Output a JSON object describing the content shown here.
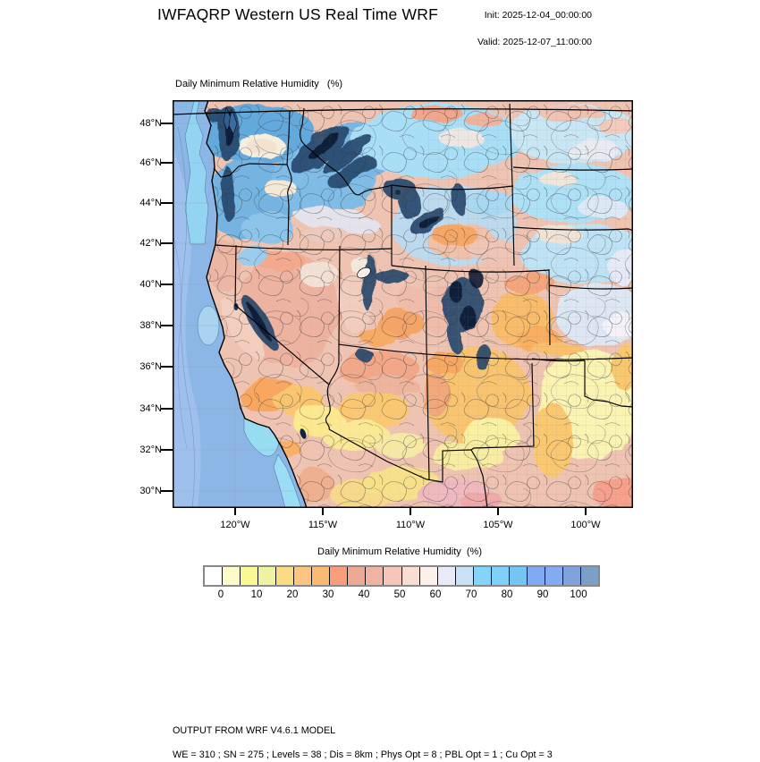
{
  "header": {
    "title": "IWFAQRP Western US Real Time WRF",
    "init_label": "Init: 2025-12-04_00:00:00",
    "valid_label": "Valid: 2025-12-07_11:00:00"
  },
  "map": {
    "subtitle": "Daily Minimum Relative Humidity   (%)",
    "lat_labels": [
      "48°N",
      "46°N",
      "44°N",
      "42°N",
      "40°N",
      "38°N",
      "36°N",
      "34°N",
      "32°N",
      "30°N"
    ],
    "lon_labels": [
      "120°W",
      "115°W",
      "110°W",
      "105°W",
      "100°W"
    ]
  },
  "colorbar": {
    "title": "Daily Minimum Relative Humidity  (%)",
    "tick_labels": [
      "0",
      "10",
      "20",
      "30",
      "40",
      "50",
      "60",
      "70",
      "80",
      "90",
      "100"
    ],
    "colors": [
      "#FFFFFF",
      "#FDFBC9",
      "#FAF795",
      "#EFF2A0",
      "#FBDC85",
      "#FBC480",
      "#F9BB74",
      "#FA9D7B",
      "#EDA896",
      "#EFB3A4",
      "#F4C5B8",
      "#F9DCD2",
      "#FDF0EA",
      "#E8EAF8",
      "#CBE1F5",
      "#83D3FA",
      "#7FD0FA",
      "#74C5F4",
      "#7FA9F2",
      "#82ABF4",
      "#7FA3DC",
      "#7BA0C8"
    ]
  },
  "footer": {
    "line1": "OUTPUT FROM WRF V4.6.1 MODEL",
    "line2": "WE = 310 ; SN = 275 ; Levels = 38 ; Dis = 8km ; Phys Opt = 8 ; PBL Opt = 1 ; Cu Opt = 3"
  }
}
